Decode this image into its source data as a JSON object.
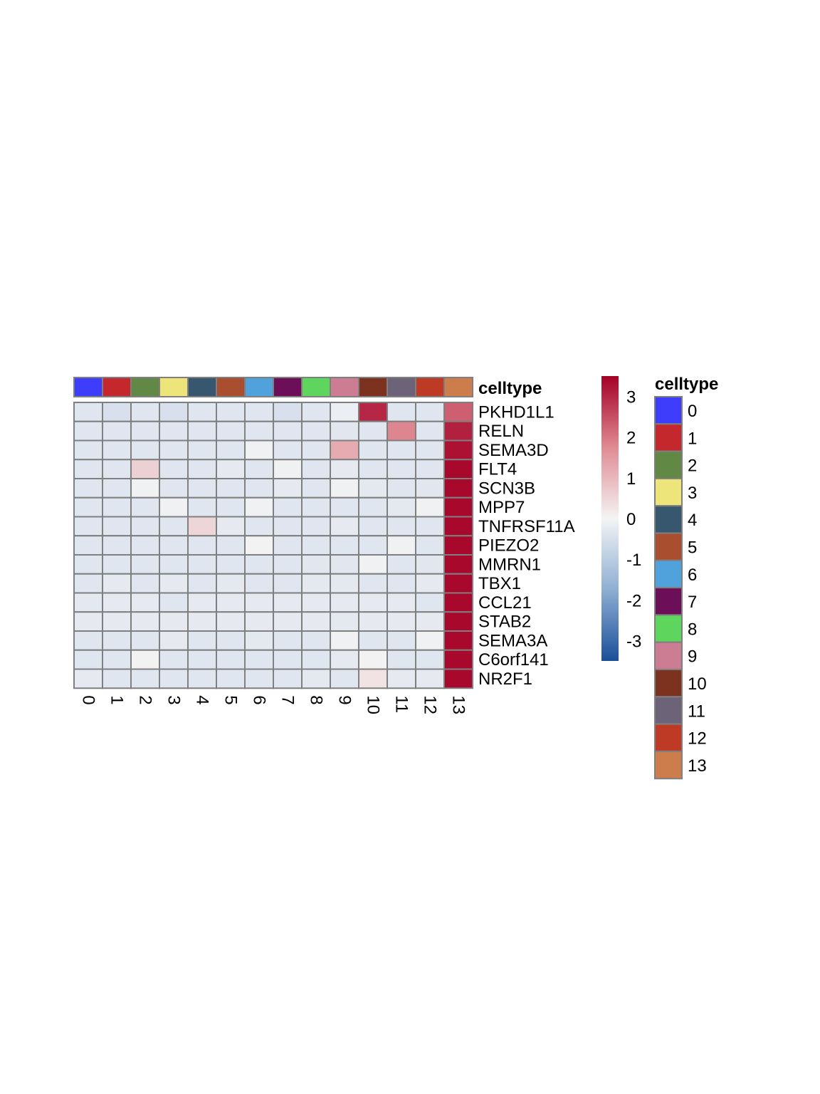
{
  "chart_data": {
    "type": "heatmap",
    "annotation_label": "celltype",
    "columns": [
      "0",
      "1",
      "2",
      "3",
      "4",
      "5",
      "6",
      "7",
      "8",
      "9",
      "10",
      "11",
      "12",
      "13"
    ],
    "rows": [
      "PKHD1L1",
      "RELN",
      "SEMA3D",
      "FLT4",
      "SCN3B",
      "MPP7",
      "TNFRSF11A",
      "PIEZO2",
      "MMRN1",
      "TBX1",
      "CCL21",
      "STAB2",
      "SEMA3A",
      "C6orf141",
      "NR2F1"
    ],
    "values": [
      [
        -0.45,
        -0.6,
        -0.45,
        -0.6,
        -0.45,
        -0.45,
        -0.45,
        -0.6,
        -0.45,
        -0.2,
        3.0,
        -0.45,
        -0.45,
        2.3
      ],
      [
        -0.45,
        -0.45,
        -0.45,
        -0.45,
        -0.45,
        -0.45,
        -0.45,
        -0.45,
        -0.45,
        -0.4,
        -0.45,
        1.8,
        -0.45,
        3.1
      ],
      [
        -0.45,
        -0.45,
        -0.45,
        -0.45,
        -0.45,
        -0.45,
        -0.1,
        -0.45,
        -0.45,
        1.2,
        -0.45,
        -0.45,
        -0.45,
        3.3
      ],
      [
        -0.45,
        -0.45,
        0.6,
        -0.45,
        -0.45,
        -0.3,
        -0.45,
        -0.1,
        -0.45,
        -0.3,
        -0.45,
        -0.45,
        -0.45,
        3.4
      ],
      [
        -0.45,
        -0.45,
        -0.1,
        -0.45,
        -0.45,
        -0.45,
        -0.45,
        -0.3,
        -0.45,
        -0.1,
        -0.35,
        -0.45,
        -0.4,
        3.4
      ],
      [
        -0.45,
        -0.45,
        -0.45,
        -0.1,
        -0.45,
        -0.45,
        -0.1,
        -0.45,
        -0.45,
        -0.45,
        -0.45,
        -0.35,
        -0.1,
        3.4
      ],
      [
        -0.45,
        -0.45,
        -0.45,
        -0.45,
        0.5,
        -0.3,
        -0.45,
        -0.45,
        -0.45,
        -0.3,
        -0.45,
        -0.45,
        -0.45,
        3.4
      ],
      [
        -0.45,
        -0.45,
        -0.45,
        -0.45,
        -0.45,
        -0.45,
        -0.05,
        -0.45,
        -0.45,
        -0.45,
        -0.45,
        -0.1,
        -0.45,
        3.4
      ],
      [
        -0.45,
        -0.45,
        -0.45,
        -0.45,
        -0.45,
        -0.45,
        -0.45,
        -0.45,
        -0.4,
        -0.4,
        -0.1,
        -0.45,
        -0.4,
        3.4
      ],
      [
        -0.45,
        -0.3,
        -0.45,
        -0.3,
        -0.45,
        -0.35,
        -0.45,
        -0.45,
        -0.35,
        -0.35,
        -0.45,
        -0.45,
        -0.3,
        3.4
      ],
      [
        -0.35,
        -0.3,
        -0.3,
        -0.45,
        -0.3,
        -0.3,
        -0.3,
        -0.3,
        -0.3,
        -0.3,
        -0.3,
        -0.3,
        -0.45,
        3.4
      ],
      [
        -0.3,
        -0.3,
        -0.3,
        -0.3,
        -0.3,
        -0.3,
        -0.3,
        -0.3,
        -0.3,
        -0.35,
        -0.3,
        -0.3,
        -0.3,
        3.4
      ],
      [
        -0.45,
        -0.45,
        -0.45,
        -0.3,
        -0.45,
        -0.45,
        -0.35,
        -0.45,
        -0.45,
        -0.1,
        -0.45,
        -0.45,
        -0.1,
        3.4
      ],
      [
        -0.45,
        -0.45,
        -0.05,
        -0.45,
        -0.45,
        -0.45,
        -0.45,
        -0.45,
        -0.45,
        -0.3,
        -0.05,
        -0.45,
        -0.45,
        3.4
      ],
      [
        -0.3,
        -0.45,
        -0.45,
        -0.45,
        -0.45,
        -0.45,
        -0.45,
        -0.45,
        -0.35,
        -0.45,
        0.3,
        -0.3,
        -0.3,
        3.4
      ]
    ],
    "colorbar": {
      "range": [
        -3.5,
        3.5
      ],
      "ticks": [
        3,
        2,
        1,
        0,
        -1,
        -2,
        -3
      ],
      "tick_labels": [
        "3",
        "2",
        "1",
        "0",
        "-1",
        "-2",
        "-3"
      ],
      "colors": [
        "#2166ac",
        "#f7f7f7",
        "#b2182b"
      ]
    },
    "legend": {
      "title": "celltype",
      "entries": [
        {
          "label": "0",
          "color": "#3f3dfc"
        },
        {
          "label": "1",
          "color": "#c5282c"
        },
        {
          "label": "2",
          "color": "#628845"
        },
        {
          "label": "3",
          "color": "#eee57a"
        },
        {
          "label": "4",
          "color": "#37576f"
        },
        {
          "label": "5",
          "color": "#a94f2f"
        },
        {
          "label": "6",
          "color": "#50a2dc"
        },
        {
          "label": "7",
          "color": "#6c0f58"
        },
        {
          "label": "8",
          "color": "#5ed55d"
        },
        {
          "label": "9",
          "color": "#cc7d93"
        },
        {
          "label": "10",
          "color": "#7c321e"
        },
        {
          "label": "11",
          "color": "#6d6379"
        },
        {
          "label": "12",
          "color": "#bf3a24"
        },
        {
          "label": "13",
          "color": "#cd7c4c"
        }
      ]
    },
    "colors": {
      "grid": "#7f7f7f"
    }
  }
}
